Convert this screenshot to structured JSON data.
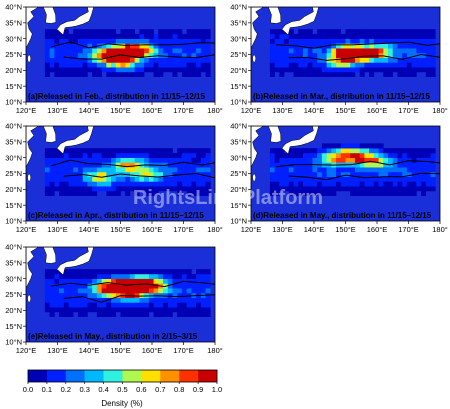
{
  "panels": [
    {
      "id": "a",
      "caption": "(a)Released in Feb., distribution in 11/15–12/15",
      "hot": [
        [
          150,
          25,
          1.0
        ],
        [
          155,
          25.5,
          0.9
        ],
        [
          145,
          24,
          0.8
        ],
        [
          150,
          22,
          0.7
        ]
      ]
    },
    {
      "id": "b",
      "caption": "(b)Released in Mar., distribution in 11/15–12/15",
      "hot": [
        [
          150,
          25,
          0.9
        ],
        [
          155,
          24.5,
          0.8
        ],
        [
          160,
          25,
          0.6
        ],
        [
          148,
          22.5,
          0.7
        ]
      ]
    },
    {
      "id": "c",
      "caption": "(c)Released in Apr., distribution in 11/15–12/15",
      "hot": [
        [
          152,
          27,
          0.65
        ],
        [
          143,
          23,
          0.55
        ],
        [
          158,
          24,
          0.45
        ]
      ]
    },
    {
      "id": "d",
      "caption": "(d)Released in May., distribution in 11/15–12/15",
      "hot": [
        [
          150,
          30,
          0.7
        ],
        [
          155,
          29.5,
          0.65
        ],
        [
          145,
          29,
          0.5
        ],
        [
          160,
          28,
          0.45
        ]
      ]
    },
    {
      "id": "e",
      "caption": "(e)Released in May., distribution in 2/15–3/15",
      "hot": [
        [
          150,
          27,
          1.0
        ],
        [
          156,
          27.5,
          0.95
        ],
        [
          145,
          26.5,
          0.85
        ],
        [
          160,
          27,
          0.7
        ],
        [
          152,
          25,
          0.8
        ]
      ]
    }
  ],
  "axes": {
    "lon_ticks": [
      "120°E",
      "130°E",
      "140°E",
      "150°E",
      "160°E",
      "170°E",
      "180°"
    ],
    "lat_ticks": [
      "40°N",
      "35°N",
      "30°N",
      "25°N",
      "20°N",
      "15°N",
      "10°N"
    ],
    "lon_range": [
      120,
      180
    ],
    "lat_range": [
      10,
      40
    ]
  },
  "colorbar": {
    "label": "Density (%)",
    "ticks": [
      "0.0",
      "0.1",
      "0.2",
      "0.3",
      "0.4",
      "0.5",
      "0.6",
      "0.7",
      "0.8",
      "0.9",
      "1.0"
    ],
    "range": [
      0,
      1.0
    ],
    "colors": [
      "#0000b4",
      "#0020ff",
      "#0070ff",
      "#00b8ff",
      "#30f0e0",
      "#b0f850",
      "#ffe000",
      "#ff9000",
      "#ff3000",
      "#c80000"
    ]
  },
  "watermark": "RightsLink Platform",
  "colors": {
    "ocean": "#1a2fd8",
    "land": "#ffffff",
    "frame": "#000000"
  }
}
